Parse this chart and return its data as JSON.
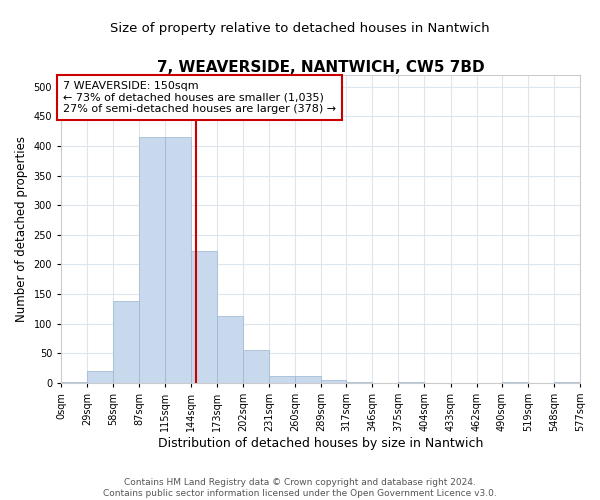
{
  "title": "7, WEAVERSIDE, NANTWICH, CW5 7BD",
  "subtitle": "Size of property relative to detached houses in Nantwich",
  "xlabel": "Distribution of detached houses by size in Nantwich",
  "ylabel": "Number of detached properties",
  "bins": [
    0,
    29,
    58,
    87,
    115,
    144,
    173,
    202,
    231,
    260,
    289,
    317,
    346,
    375,
    404,
    433,
    462,
    490,
    519,
    548,
    577
  ],
  "counts": [
    2,
    20,
    138,
    415,
    415,
    222,
    113,
    55,
    12,
    12,
    5,
    1,
    0,
    1,
    0,
    0,
    0,
    1,
    0,
    1
  ],
  "bar_color": "#c8d8ed",
  "bar_edge_color": "#9ab5d0",
  "property_size": 150,
  "vline_color": "#cc0000",
  "annotation_text": "7 WEAVERSIDE: 150sqm\n← 73% of detached houses are smaller (1,035)\n27% of semi-detached houses are larger (378) →",
  "annotation_box_color": "#ffffff",
  "annotation_box_edge_color": "#cc0000",
  "ylim": [
    0,
    520
  ],
  "yticks": [
    0,
    50,
    100,
    150,
    200,
    250,
    300,
    350,
    400,
    450,
    500
  ],
  "tick_labels": [
    "0sqm",
    "29sqm",
    "58sqm",
    "87sqm",
    "115sqm",
    "144sqm",
    "173sqm",
    "202sqm",
    "231sqm",
    "260sqm",
    "289sqm",
    "317sqm",
    "346sqm",
    "375sqm",
    "404sqm",
    "433sqm",
    "462sqm",
    "490sqm",
    "519sqm",
    "548sqm",
    "577sqm"
  ],
  "background_color": "#ffffff",
  "plot_background_color": "#ffffff",
  "grid_color": "#dde5ee",
  "footer_text": "Contains HM Land Registry data © Crown copyright and database right 2024.\nContains public sector information licensed under the Open Government Licence v3.0.",
  "title_fontsize": 11,
  "subtitle_fontsize": 9.5,
  "xlabel_fontsize": 9,
  "ylabel_fontsize": 8.5,
  "tick_fontsize": 7,
  "annotation_fontsize": 8,
  "footer_fontsize": 6.5
}
